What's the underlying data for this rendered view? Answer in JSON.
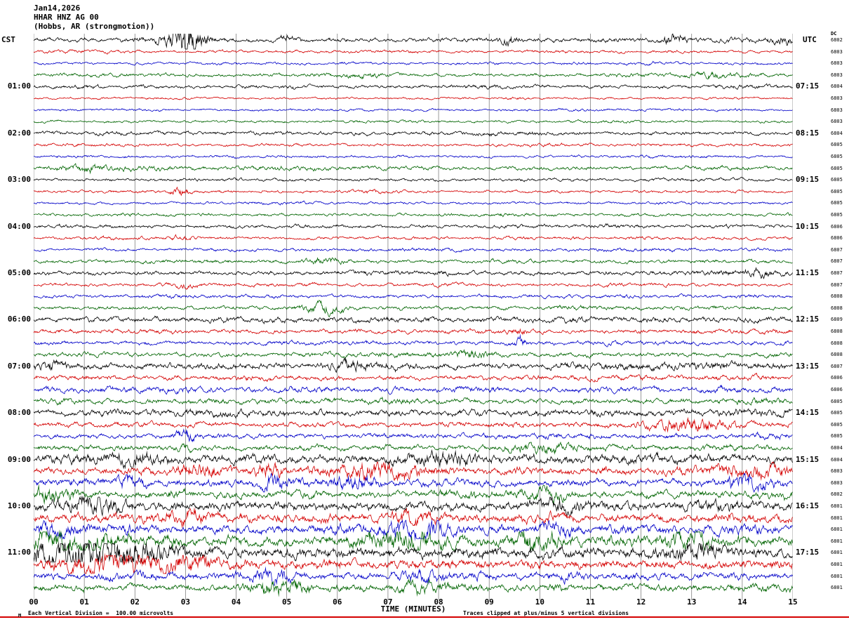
{
  "header": {
    "date": "Jan14,2026",
    "station": "HHAR HNZ AG 00",
    "location": "(Hobbs, AR (strongmotion))"
  },
  "axes": {
    "left_tz": "CST",
    "right_tz": "UTC",
    "dc_label": "DC",
    "x_title": "TIME (MINUTES)",
    "x_ticks": [
      "00",
      "01",
      "02",
      "03",
      "04",
      "05",
      "06",
      "07",
      "08",
      "09",
      "10",
      "11",
      "12",
      "13",
      "14",
      "15"
    ]
  },
  "footer": {
    "left_note": "Each Vertical Division =  100.00 microvolts",
    "right_note": "Traces clipped at plus/minus 5 vertical divisions",
    "corner_mark": "M"
  },
  "chart_data": {
    "type": "line",
    "subtype": "helicorder-seismogram",
    "x_range_minutes": [
      0,
      15
    ],
    "row_duration_minutes": 15,
    "rows_per_hour": 4,
    "grid": "vertical-per-minute",
    "palette": [
      "#000000",
      "#d40000",
      "#0000c8",
      "#006400"
    ],
    "rows": [
      {
        "color": 0,
        "dc": "6802",
        "amp": 1.1,
        "events": [
          [
            2.75,
            5,
            0.25
          ],
          [
            3.05,
            14,
            0.1
          ],
          [
            3.3,
            4,
            0.2
          ],
          [
            5.0,
            2.5,
            0.15
          ],
          [
            9.4,
            4,
            0.12
          ],
          [
            12.65,
            4,
            0.18
          ],
          [
            14.85,
            2.5,
            0.2
          ]
        ]
      },
      {
        "color": 1,
        "dc": "6803",
        "amp": 0.75
      },
      {
        "color": 2,
        "dc": "6803",
        "amp": 0.7
      },
      {
        "color": 3,
        "dc": "6803",
        "amp": 0.9,
        "events": [
          [
            6.5,
            1.5,
            0.3
          ],
          [
            13.5,
            1.5,
            0.3
          ]
        ]
      },
      {
        "color": 0,
        "dc": "6804",
        "amp": 0.95,
        "left": "01:00",
        "right": "07:15"
      },
      {
        "color": 1,
        "dc": "6803",
        "amp": 0.6
      },
      {
        "color": 2,
        "dc": "6803",
        "amp": 0.65
      },
      {
        "color": 3,
        "dc": "6803",
        "amp": 0.7
      },
      {
        "color": 0,
        "dc": "6804",
        "amp": 0.95,
        "left": "02:00",
        "right": "08:15"
      },
      {
        "color": 1,
        "dc": "6805",
        "amp": 0.75
      },
      {
        "color": 2,
        "dc": "6805",
        "amp": 0.7
      },
      {
        "color": 3,
        "dc": "6805",
        "amp": 1.1,
        "events": [
          [
            1.1,
            1.5,
            0.3
          ]
        ]
      },
      {
        "color": 0,
        "dc": "6805",
        "amp": 0.8,
        "left": "03:00",
        "right": "09:15"
      },
      {
        "color": 1,
        "dc": "6805",
        "amp": 0.75,
        "events": [
          [
            2.9,
            2,
            0.15
          ]
        ]
      },
      {
        "color": 2,
        "dc": "6805",
        "amp": 0.7
      },
      {
        "color": 3,
        "dc": "6805",
        "amp": 0.8
      },
      {
        "color": 0,
        "dc": "6806",
        "amp": 0.9,
        "left": "04:00",
        "right": "10:15"
      },
      {
        "color": 1,
        "dc": "6806",
        "amp": 0.75,
        "events": [
          [
            2.9,
            1.5,
            0.2
          ]
        ]
      },
      {
        "color": 2,
        "dc": "6807",
        "amp": 0.8
      },
      {
        "color": 3,
        "dc": "6807",
        "amp": 0.95,
        "events": [
          [
            5.8,
            2,
            0.25
          ]
        ]
      },
      {
        "color": 0,
        "dc": "6807",
        "amp": 1.1,
        "left": "05:00",
        "right": "11:15",
        "events": [
          [
            14.3,
            2,
            0.3
          ]
        ]
      },
      {
        "color": 1,
        "dc": "6807",
        "amp": 0.85,
        "events": [
          [
            3.0,
            1.5,
            0.2
          ]
        ]
      },
      {
        "color": 2,
        "dc": "6808",
        "amp": 0.95
      },
      {
        "color": 3,
        "dc": "6808",
        "amp": 1.0,
        "events": [
          [
            5.7,
            3.5,
            0.3
          ]
        ]
      },
      {
        "color": 0,
        "dc": "6809",
        "amp": 1.5,
        "left": "06:00",
        "right": "12:15"
      },
      {
        "color": 1,
        "dc": "6808",
        "amp": 1.1,
        "events": [
          [
            9.6,
            2.5,
            0.1
          ]
        ]
      },
      {
        "color": 2,
        "dc": "6808",
        "amp": 1.1,
        "events": [
          [
            9.6,
            3.5,
            0.08
          ]
        ]
      },
      {
        "color": 3,
        "dc": "6808",
        "amp": 1.2,
        "events": [
          [
            8.6,
            2,
            0.3
          ]
        ]
      },
      {
        "color": 0,
        "dc": "6807",
        "amp": 1.7,
        "left": "07:00",
        "right": "13:15",
        "events": [
          [
            0.3,
            2.5,
            0.2
          ],
          [
            6.2,
            2.5,
            0.3
          ]
        ]
      },
      {
        "color": 1,
        "dc": "6806",
        "amp": 1.3
      },
      {
        "color": 2,
        "dc": "6806",
        "amp": 1.5
      },
      {
        "color": 3,
        "dc": "6805",
        "amp": 1.4
      },
      {
        "color": 0,
        "dc": "6805",
        "amp": 1.7,
        "left": "08:00",
        "right": "14:15"
      },
      {
        "color": 1,
        "dc": "6805",
        "amp": 1.4,
        "events": [
          [
            12.9,
            4.5,
            0.5
          ]
        ]
      },
      {
        "color": 2,
        "dc": "6805",
        "amp": 1.4,
        "events": [
          [
            3.0,
            4,
            0.12
          ]
        ]
      },
      {
        "color": 3,
        "dc": "6804",
        "amp": 1.5,
        "events": [
          [
            3.0,
            2.5,
            0.1
          ],
          [
            10.0,
            3,
            0.4
          ]
        ]
      },
      {
        "color": 0,
        "dc": "6804",
        "amp": 2.4,
        "left": "09:00",
        "right": "15:15",
        "events": [
          [
            2.0,
            3,
            0.3
          ],
          [
            8.0,
            3.5,
            0.4
          ]
        ]
      },
      {
        "color": 1,
        "dc": "6803",
        "amp": 2.0,
        "events": [
          [
            3.2,
            3.5,
            0.3
          ],
          [
            4.6,
            4,
            0.2
          ],
          [
            6.8,
            4,
            0.6
          ],
          [
            14.3,
            4,
            0.4
          ]
        ]
      },
      {
        "color": 2,
        "dc": "6803",
        "amp": 2.0,
        "events": [
          [
            1.9,
            4.5,
            0.2
          ],
          [
            4.7,
            5,
            0.15
          ],
          [
            6.3,
            3.5,
            0.3
          ],
          [
            14.1,
            5,
            0.3
          ]
        ]
      },
      {
        "color": 3,
        "dc": "6802",
        "amp": 1.9,
        "events": [
          [
            0.3,
            4,
            0.3
          ],
          [
            10.1,
            3.5,
            0.25
          ]
        ]
      },
      {
        "color": 0,
        "dc": "6801",
        "amp": 2.6,
        "left": "10:00",
        "right": "16:15",
        "events": [
          [
            1.2,
            4,
            0.4
          ],
          [
            10.5,
            3,
            0.3
          ]
        ]
      },
      {
        "color": 1,
        "dc": "6801",
        "amp": 2.4,
        "events": [
          [
            3.0,
            3.5,
            0.4
          ],
          [
            7.5,
            3,
            0.3
          ]
        ]
      },
      {
        "color": 2,
        "dc": "6801",
        "amp": 2.4,
        "events": [
          [
            0.5,
            3.5,
            0.3
          ],
          [
            7.6,
            5,
            0.4
          ],
          [
            10.4,
            4,
            0.25
          ]
        ]
      },
      {
        "color": 3,
        "dc": "6801",
        "amp": 2.8,
        "events": [
          [
            0.6,
            6,
            0.7
          ],
          [
            7.3,
            7,
            0.5
          ],
          [
            9.8,
            5,
            0.25
          ],
          [
            13.0,
            4.5,
            0.35
          ]
        ]
      },
      {
        "color": 0,
        "dc": "6801",
        "amp": 3.0,
        "left": "11:00",
        "right": "17:15",
        "events": [
          [
            0.5,
            7,
            0.5
          ],
          [
            1.3,
            9,
            0.6
          ],
          [
            2.2,
            5,
            0.4
          ],
          [
            13.1,
            5,
            0.3
          ]
        ]
      },
      {
        "color": 1,
        "dc": "6801",
        "amp": 2.6,
        "events": [
          [
            1.5,
            5,
            0.7
          ],
          [
            3.0,
            4,
            0.4
          ]
        ]
      },
      {
        "color": 2,
        "dc": "6801",
        "amp": 2.0,
        "events": [
          [
            4.7,
            3.5,
            0.3
          ],
          [
            7.8,
            3,
            0.3
          ]
        ]
      },
      {
        "color": 3,
        "dc": "6801",
        "amp": 1.9,
        "events": [
          [
            4.8,
            3.5,
            0.4
          ],
          [
            7.6,
            3,
            0.3
          ]
        ]
      }
    ]
  }
}
